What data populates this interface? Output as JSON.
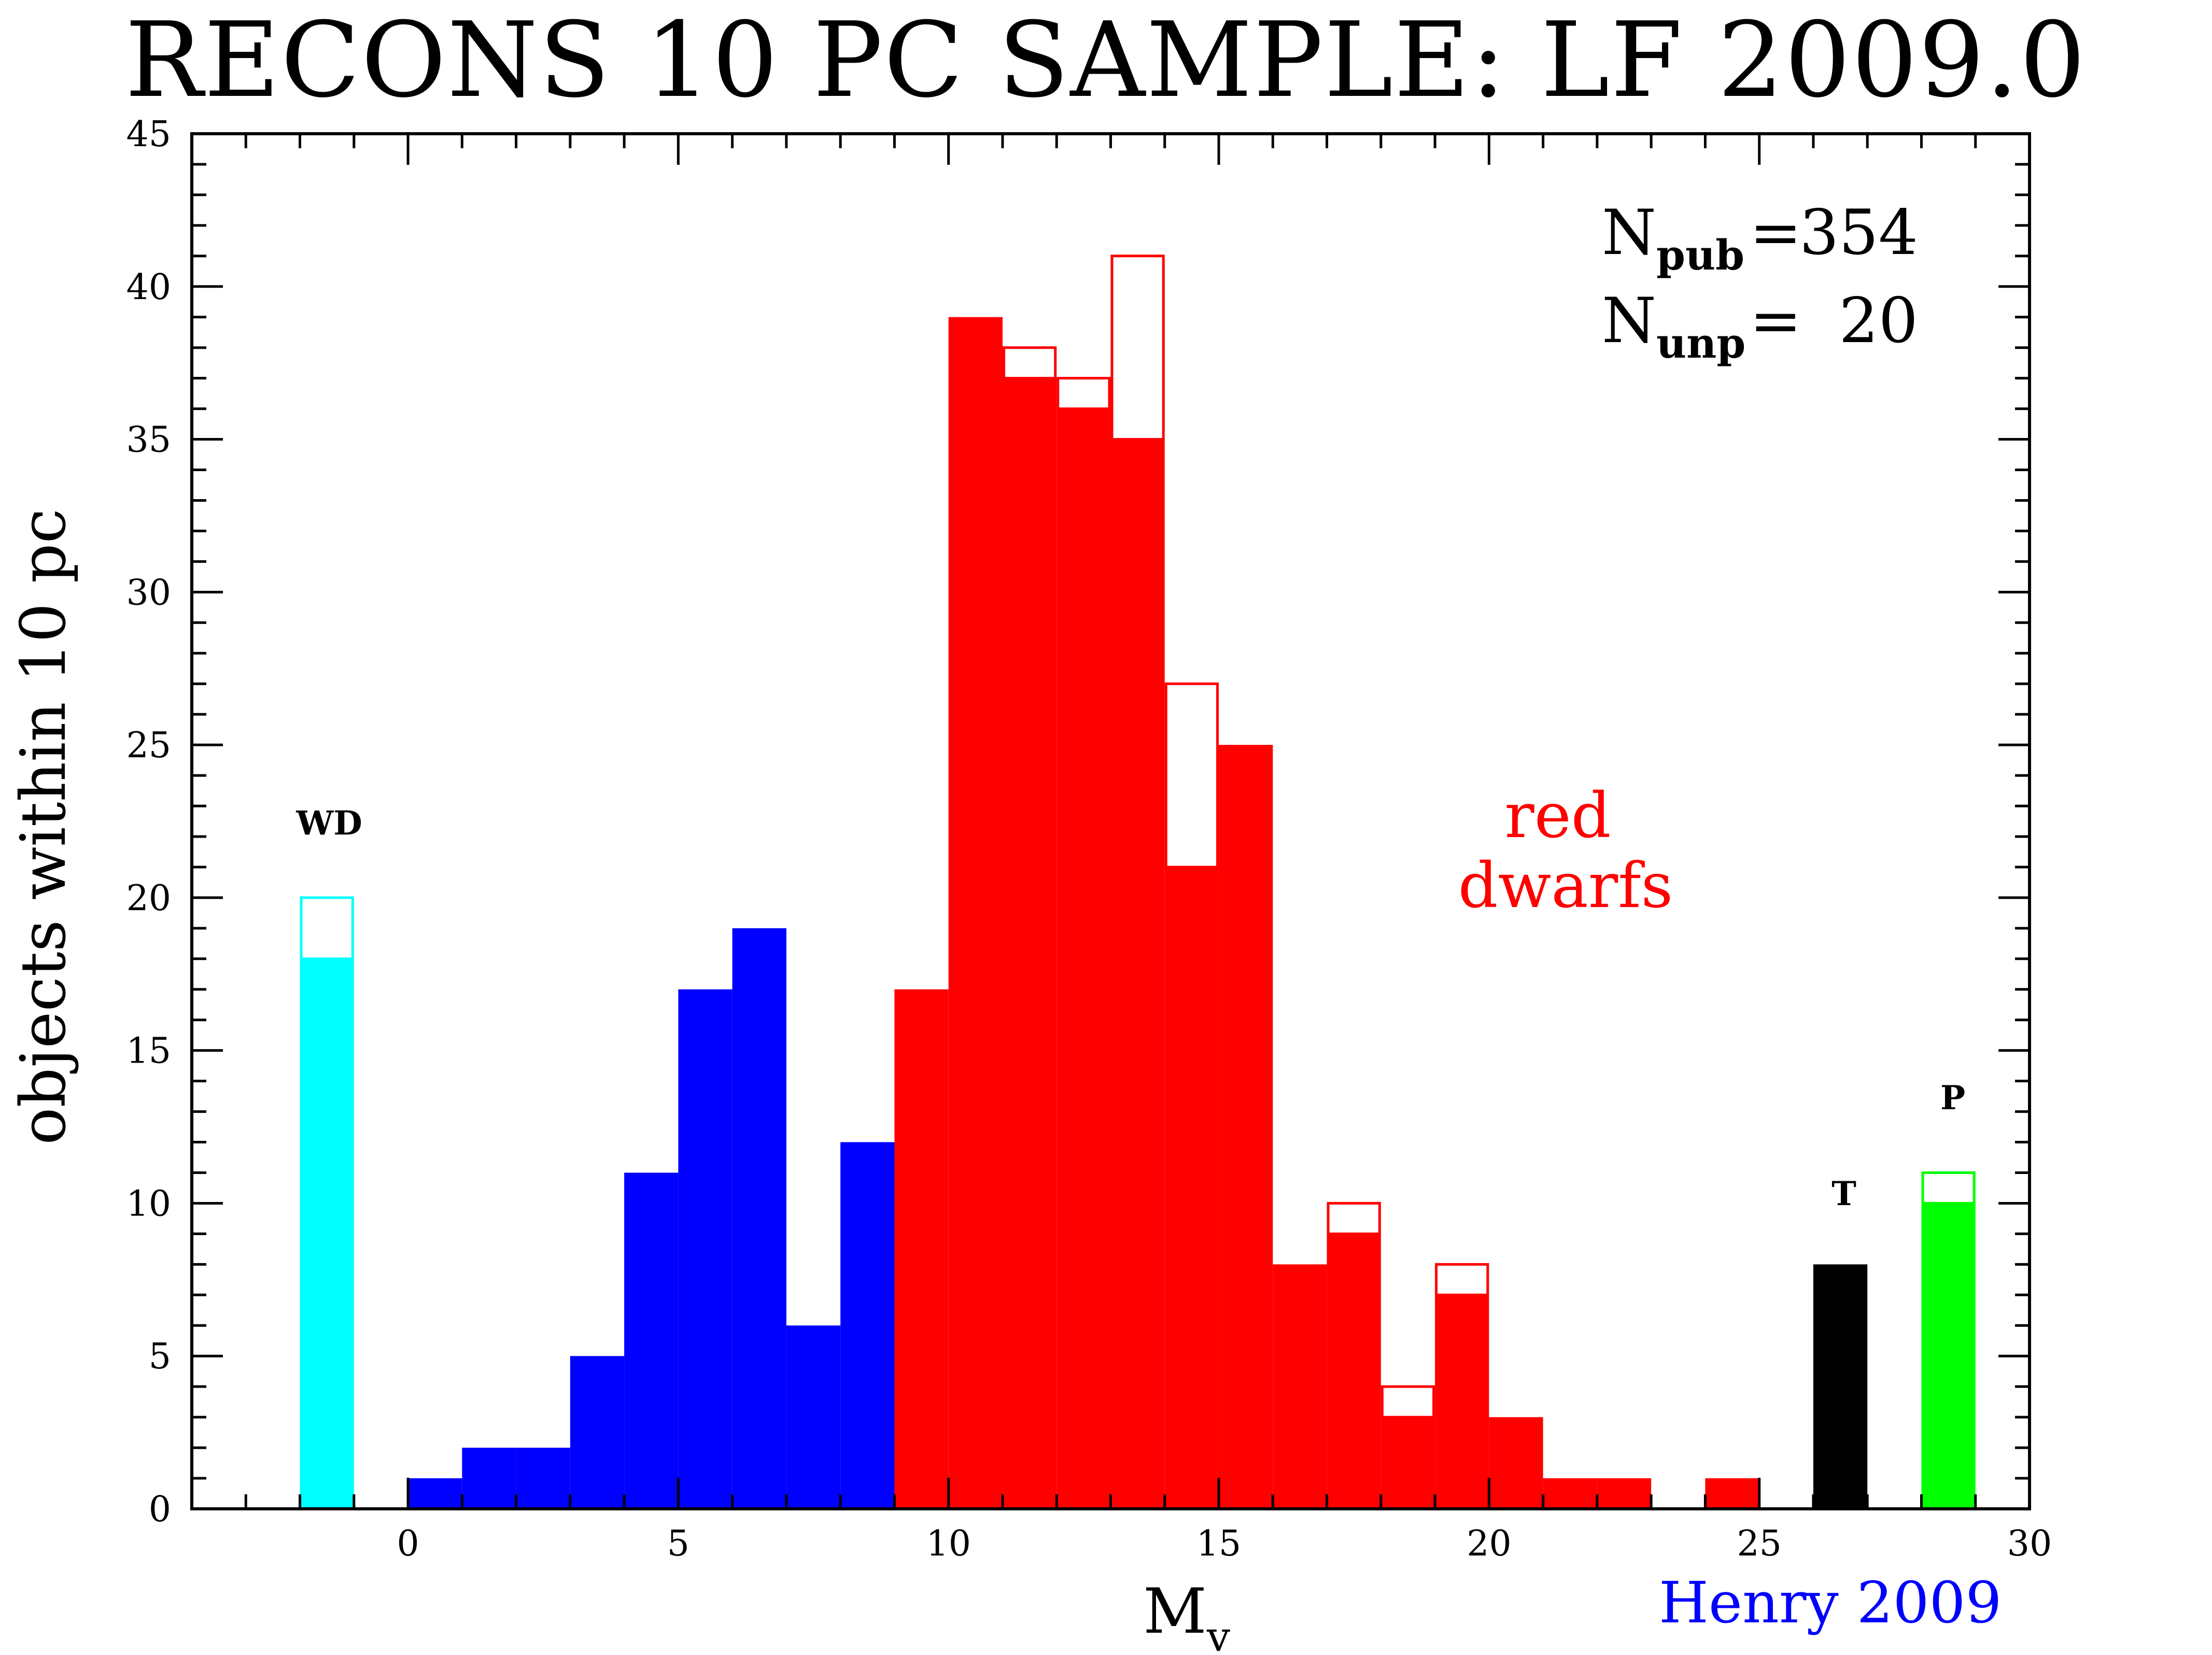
{
  "chart_data": {
    "type": "bar",
    "title": "RECONS 10 PC SAMPLE: LF 2009.0",
    "xlabel": "M",
    "xlabel_subscript": "v",
    "ylabel": "objects within 10 pc",
    "xlim": [
      -4,
      30
    ],
    "ylim": [
      0,
      45
    ],
    "xticks": [
      0,
      5,
      10,
      15,
      20,
      25,
      30
    ],
    "yticks": [
      0,
      5,
      10,
      15,
      20,
      25,
      30,
      35,
      40,
      45
    ],
    "grid": false,
    "bin_width": 1,
    "series": [
      {
        "name": "WD",
        "color": "#00ffff",
        "bins": [
          {
            "x0": -2,
            "published": 18,
            "total": 20
          }
        ]
      },
      {
        "name": "",
        "color": "#0000ff",
        "bins": [
          {
            "x0": 0,
            "published": 1,
            "total": 1
          },
          {
            "x0": 1,
            "published": 2,
            "total": 2
          },
          {
            "x0": 2,
            "published": 2,
            "total": 2
          },
          {
            "x0": 3,
            "published": 5,
            "total": 5
          },
          {
            "x0": 4,
            "published": 11,
            "total": 11
          },
          {
            "x0": 5,
            "published": 17,
            "total": 17
          },
          {
            "x0": 6,
            "published": 19,
            "total": 19
          },
          {
            "x0": 7,
            "published": 6,
            "total": 6
          },
          {
            "x0": 8,
            "published": 12,
            "total": 12
          }
        ]
      },
      {
        "name": "red dwarfs",
        "color": "#ff0000",
        "bins": [
          {
            "x0": 9,
            "published": 17,
            "total": 17
          },
          {
            "x0": 10,
            "published": 39,
            "total": 39
          },
          {
            "x0": 11,
            "published": 37,
            "total": 38
          },
          {
            "x0": 12,
            "published": 36,
            "total": 37
          },
          {
            "x0": 13,
            "published": 35,
            "total": 41
          },
          {
            "x0": 14,
            "published": 21,
            "total": 27
          },
          {
            "x0": 15,
            "published": 25,
            "total": 25
          },
          {
            "x0": 16,
            "published": 8,
            "total": 8
          },
          {
            "x0": 17,
            "published": 9,
            "total": 10
          },
          {
            "x0": 18,
            "published": 3,
            "total": 4
          },
          {
            "x0": 19,
            "published": 7,
            "total": 8
          },
          {
            "x0": 20,
            "published": 3,
            "total": 3
          },
          {
            "x0": 21,
            "published": 1,
            "total": 1
          },
          {
            "x0": 22,
            "published": 1,
            "total": 1
          },
          {
            "x0": 24,
            "published": 1,
            "total": 1
          }
        ]
      },
      {
        "name": "T",
        "color": "#000000",
        "bins": [
          {
            "x0": 26,
            "published": 8,
            "total": 8
          }
        ]
      },
      {
        "name": "P",
        "color": "#00ff00",
        "bins": [
          {
            "x0": 28,
            "published": 10,
            "total": 11
          }
        ]
      }
    ],
    "annotations": {
      "n_pub_label": "N",
      "n_pub_sub": "pub",
      "n_pub_eq": "=",
      "n_pub_value": "354",
      "n_unp_label": "N",
      "n_unp_sub": "unp",
      "n_unp_eq": "=",
      "n_unp_value": "20",
      "wd_label": "WD",
      "t_label": "T",
      "p_label": "P",
      "red_line1": "red",
      "red_line2": "dwarfs",
      "credit": "Henry 2009",
      "credit_color": "#0000ff"
    }
  }
}
